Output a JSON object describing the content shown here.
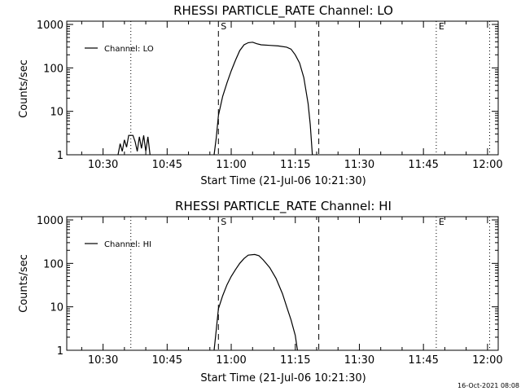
{
  "chart_data": [
    {
      "type": "line",
      "title": "RHESSI PARTICLE_RATE Channel: LO",
      "xlabel": "Start Time (21-Jul-06 10:21:30)",
      "ylabel": "Counts/sec",
      "y_scale": "log",
      "ylim": [
        1,
        1000
      ],
      "xlim": [
        "10:21:30",
        "12:02:30"
      ],
      "x_tick_labels": [
        "10:30",
        "10:45",
        "11:00",
        "11:15",
        "11:30",
        "11:45",
        "12:00"
      ],
      "y_tick_labels": [
        "1",
        "10",
        "100",
        "1000"
      ],
      "legend": {
        "position": "top-left",
        "entries": [
          "Channel: LO"
        ]
      },
      "markers": [
        {
          "label": "S",
          "time": "10:57:00",
          "style": "dashed"
        },
        {
          "label": "",
          "time": "11:20:30",
          "style": "dashed"
        },
        {
          "label": "",
          "time": "10:36:30",
          "style": "dotted"
        },
        {
          "label": "E",
          "time": "11:48:00",
          "style": "dotted"
        },
        {
          "label": "",
          "time": "12:00:30",
          "style": "dotted"
        }
      ],
      "series": [
        {
          "name": "Channel: LO",
          "points": [
            [
              "10:33:30",
              1.0
            ],
            [
              "10:34:00",
              1.8
            ],
            [
              "10:34:30",
              1.2
            ],
            [
              "10:35:00",
              2.2
            ],
            [
              "10:35:30",
              1.5
            ],
            [
              "10:36:00",
              2.8
            ],
            [
              "10:37:00",
              2.8
            ],
            [
              "10:37:30",
              2.0
            ],
            [
              "10:38:00",
              1.2
            ],
            [
              "10:38:30",
              2.6
            ],
            [
              "10:39:00",
              1.4
            ],
            [
              "10:39:30",
              2.8
            ],
            [
              "10:40:00",
              1.2
            ],
            [
              "10:40:30",
              2.6
            ],
            [
              "10:41:00",
              1.0
            ]
          ]
        },
        {
          "name": "Channel: LO",
          "points": [
            [
              "10:56:00",
              1.0
            ],
            [
              "10:56:30",
              2.5
            ],
            [
              "10:57:00",
              8
            ],
            [
              "10:58:00",
              22
            ],
            [
              "10:59:00",
              45
            ],
            [
              "11:00:00",
              85
            ],
            [
              "11:01:00",
              150
            ],
            [
              "11:02:00",
              250
            ],
            [
              "11:03:00",
              340
            ],
            [
              "11:04:00",
              380
            ],
            [
              "11:05:00",
              390
            ],
            [
              "11:06:00",
              360
            ],
            [
              "11:07:00",
              340
            ],
            [
              "11:09:00",
              330
            ],
            [
              "11:11:00",
              320
            ],
            [
              "11:13:00",
              300
            ],
            [
              "11:14:00",
              270
            ],
            [
              "11:15:00",
              200
            ],
            [
              "11:16:00",
              130
            ],
            [
              "11:17:00",
              60
            ],
            [
              "11:18:00",
              15
            ],
            [
              "11:18:30",
              5
            ],
            [
              "11:19:00",
              1.0
            ]
          ]
        }
      ]
    },
    {
      "type": "line",
      "title": "RHESSI PARTICLE_RATE Channel: HI",
      "xlabel": "Start Time (21-Jul-06 10:21:30)",
      "ylabel": "Counts/sec",
      "y_scale": "log",
      "ylim": [
        1,
        1000
      ],
      "xlim": [
        "10:21:30",
        "12:02:30"
      ],
      "x_tick_labels": [
        "10:30",
        "10:45",
        "11:00",
        "11:15",
        "11:30",
        "11:45",
        "12:00"
      ],
      "y_tick_labels": [
        "1",
        "10",
        "100",
        "1000"
      ],
      "legend": {
        "position": "top-left",
        "entries": [
          "Channel: HI"
        ]
      },
      "markers": [
        {
          "label": "S",
          "time": "10:57:00",
          "style": "dashed"
        },
        {
          "label": "",
          "time": "11:20:30",
          "style": "dashed"
        },
        {
          "label": "",
          "time": "10:36:30",
          "style": "dotted"
        },
        {
          "label": "E",
          "time": "11:48:00",
          "style": "dotted"
        },
        {
          "label": "",
          "time": "12:00:30",
          "style": "dotted"
        }
      ],
      "series": [
        {
          "name": "Channel: HI",
          "points": [
            [
              "10:56:00",
              1.0
            ],
            [
              "10:56:30",
              3
            ],
            [
              "10:57:00",
              9
            ],
            [
              "10:58:00",
              18
            ],
            [
              "10:59:00",
              32
            ],
            [
              "11:00:00",
              50
            ],
            [
              "11:01:00",
              72
            ],
            [
              "11:02:00",
              100
            ],
            [
              "11:03:00",
              130
            ],
            [
              "11:04:00",
              155
            ],
            [
              "11:05:30",
              160
            ],
            [
              "11:06:30",
              150
            ],
            [
              "11:07:30",
              120
            ],
            [
              "11:09:00",
              80
            ],
            [
              "11:10:30",
              45
            ],
            [
              "11:12:00",
              20
            ],
            [
              "11:13:00",
              10
            ],
            [
              "11:14:00",
              5
            ],
            [
              "11:15:00",
              2.2
            ],
            [
              "11:15:30",
              1.0
            ]
          ]
        }
      ]
    }
  ],
  "footer": {
    "timestamp": "16-Oct-2021 08:08"
  }
}
